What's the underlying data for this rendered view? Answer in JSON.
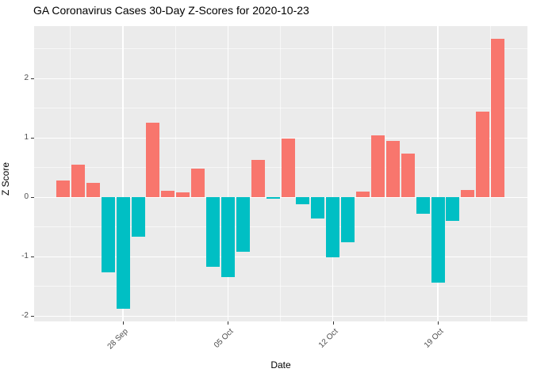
{
  "title": "GA Coronavirus Cases 30-Day Z-Scores for 2020-10-23",
  "chart_data": {
    "type": "bar",
    "title": "GA Coronavirus Cases 30-Day Z-Scores for 2020-10-23",
    "xlabel": "Date",
    "ylabel": "Z Score",
    "x": [
      "2020-09-24",
      "2020-09-25",
      "2020-09-26",
      "2020-09-27",
      "2020-09-28",
      "2020-09-29",
      "2020-09-30",
      "2020-10-01",
      "2020-10-02",
      "2020-10-03",
      "2020-10-04",
      "2020-10-05",
      "2020-10-06",
      "2020-10-07",
      "2020-10-08",
      "2020-10-09",
      "2020-10-10",
      "2020-10-11",
      "2020-10-12",
      "2020-10-13",
      "2020-10-14",
      "2020-10-15",
      "2020-10-16",
      "2020-10-17",
      "2020-10-18",
      "2020-10-19",
      "2020-10-20",
      "2020-10-21",
      "2020-10-22",
      "2020-10-23"
    ],
    "values": [
      0.28,
      0.55,
      0.24,
      -1.26,
      -1.87,
      -0.66,
      1.26,
      0.11,
      0.08,
      0.48,
      -1.17,
      -1.34,
      -0.91,
      0.63,
      -0.02,
      0.99,
      -0.11,
      -0.35,
      -1.01,
      -0.76,
      0.1,
      1.04,
      0.95,
      0.74,
      -0.27,
      -1.43,
      -0.39,
      0.12,
      1.44,
      2.67
    ],
    "x_tick_labels": [
      "28 Sep",
      "05 Oct",
      "12 Oct",
      "19 Oct"
    ],
    "x_tick_indices": [
      4,
      11,
      18,
      25
    ],
    "y_ticks": [
      2,
      1,
      0,
      -1,
      -2
    ],
    "y_minor_ticks": [
      2.5,
      1.5,
      0.5,
      -0.5,
      -1.5
    ],
    "ylim": [
      -2.1,
      2.88
    ],
    "legend": "none",
    "grid": "major and minor, white on gray panel",
    "colors": {
      "positive": "#F8766D",
      "negative": "#00BFC4",
      "panel_bg": "#EBEBEB",
      "grid": "#FFFFFF",
      "tick_label": "#4D4D4D",
      "tick_mark": "#333333",
      "text": "#000000"
    }
  }
}
